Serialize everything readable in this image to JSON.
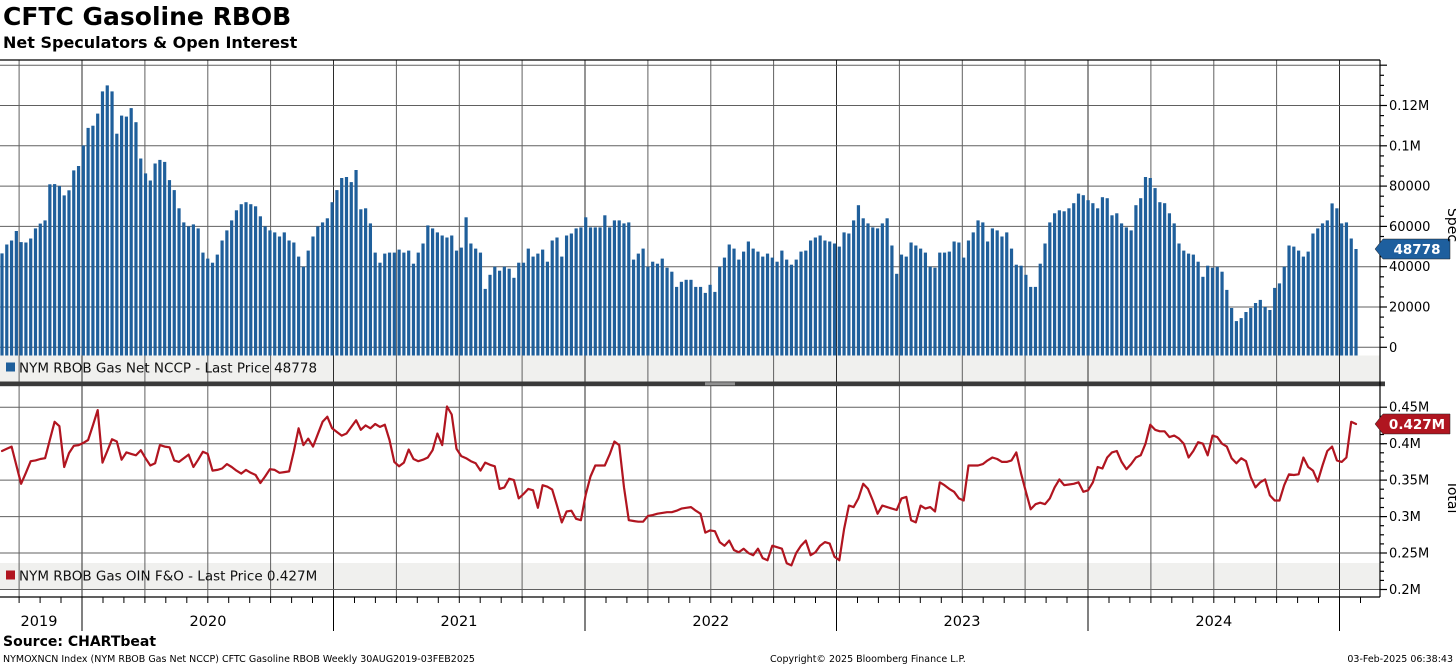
{
  "header": {
    "title": "CFTC Gasoline RBOB",
    "subtitle": "Net Speculators & Open Interest"
  },
  "source_line": "Source: CHARTbeat",
  "footer": {
    "left": "NYMOXNCN Index (NYM RBOB Gas Net NCCP) CFTC Gasoline RBOB  Weekly 30AUG2019-03FEB2025",
    "center": "Copyright© 2025 Bloomberg Finance L.P.",
    "right": "03-Feb-2025 06:38:43"
  },
  "colors": {
    "bar_blue": "#1f5f9b",
    "badge_blue": "#1e5f9e",
    "line_red": "#b11520",
    "badge_red": "#b01520",
    "grid": "#606060",
    "grid_year": "#2b2b2b",
    "legend_band": "#f0f0ee",
    "divider": "#3a3a3a",
    "divider_handle": "#909090",
    "axis_line": "#000000"
  },
  "x_axis": {
    "year_labels": [
      "2019",
      "2020",
      "2021",
      "2022",
      "2023",
      "2024"
    ],
    "frequency": "Weekly",
    "range": "30AUG2019-03FEB2025"
  },
  "chart_data": [
    {
      "panel": "top",
      "type": "bar",
      "series_name": "NYM RBOB Gas Net NCCP",
      "legend_label": "NYM RBOB Gas Net NCCP - Last Price 48778",
      "axis_title": "Spec",
      "last_price": 48778,
      "last_price_label": "48778",
      "unit": "contracts (weekly net speculator position)",
      "ylim": [
        0,
        142000
      ],
      "yticks": [
        {
          "v": 0,
          "label": "0"
        },
        {
          "v": 20000,
          "label": "20000"
        },
        {
          "v": 40000,
          "label": "40000"
        },
        {
          "v": 60000,
          "label": "60000"
        },
        {
          "v": 80000,
          "label": "80000"
        },
        {
          "v": 100000,
          "label": "0.1M"
        },
        {
          "v": 120000,
          "label": "0.12M"
        }
      ],
      "values": [
        46600,
        51000,
        53000,
        57700,
        52200,
        52000,
        54000,
        59000,
        61400,
        63000,
        80900,
        81000,
        80000,
        75400,
        77900,
        87800,
        90000,
        100200,
        108900,
        110000,
        116000,
        127000,
        130000,
        127000,
        106000,
        115000,
        114500,
        118700,
        111700,
        93700,
        86300,
        82800,
        91200,
        93000,
        92000,
        83000,
        78000,
        69000,
        62000,
        60000,
        61000,
        59000,
        47000,
        44000,
        42000,
        46000,
        53000,
        58000,
        63000,
        68000,
        71000,
        72000,
        71000,
        70000,
        65000,
        60000,
        58000,
        57000,
        55000,
        57000,
        53000,
        52000,
        45000,
        40000,
        48000,
        55000,
        60000,
        62000,
        64000,
        72000,
        78000,
        84000,
        84500,
        82000,
        88000,
        68500,
        69000,
        61500,
        47000,
        42000,
        46500,
        47000,
        47000,
        48500,
        47000,
        48000,
        41500,
        47000,
        51500,
        60500,
        59000,
        57000,
        55500,
        54500,
        55500,
        48000,
        49500,
        64500,
        51500,
        49000,
        47000,
        29000,
        36000,
        40000,
        38000,
        40000,
        39000,
        34500,
        42000,
        42000,
        49000,
        45000,
        46500,
        48500,
        42500,
        53000,
        54500,
        45000,
        55500,
        56500,
        59000,
        59500,
        64500,
        59500,
        59500,
        59500,
        65500,
        59500,
        63000,
        63000,
        61500,
        62000,
        43500,
        46500,
        49000,
        40000,
        42500,
        41500,
        44000,
        39500,
        37500,
        30000,
        32500,
        33500,
        33500,
        30000,
        30000,
        27000,
        31000,
        27500,
        40000,
        44500,
        51000,
        49000,
        43500,
        47500,
        52500,
        49000,
        47500,
        45000,
        46500,
        44500,
        42500,
        48000,
        43500,
        41000,
        43500,
        47500,
        48000,
        53000,
        54500,
        55500,
        53000,
        52500,
        51500,
        50000,
        57000,
        56500,
        63000,
        70500,
        64000,
        61500,
        59500,
        59000,
        61500,
        64000,
        50500,
        36500,
        46000,
        45000,
        52000,
        50500,
        49000,
        47000,
        40000,
        39500,
        47000,
        47000,
        47500,
        52500,
        52000,
        44500,
        53000,
        57000,
        63000,
        62000,
        52500,
        59000,
        58000,
        55000,
        57000,
        49000,
        41000,
        40500,
        36000,
        30000,
        30000,
        41500,
        51500,
        62000,
        66500,
        68000,
        67500,
        69000,
        71500,
        76300,
        75500,
        73000,
        71500,
        69000,
        74500,
        74000,
        65500,
        66500,
        61500,
        59500,
        58000,
        70500,
        74000,
        84500,
        84000,
        79000,
        72000,
        71500,
        66500,
        61500,
        51500,
        48000,
        46500,
        46000,
        42500,
        35000,
        40500,
        39500,
        40000,
        37500,
        28500,
        19500,
        13000,
        14500,
        17500,
        19500,
        22000,
        23500,
        20000,
        18500,
        29500,
        31700,
        40000,
        50500,
        50000,
        48000,
        45000,
        47500,
        56500,
        59000,
        61500,
        63000,
        71400,
        69000,
        61500,
        62000,
        54000,
        48778
      ]
    },
    {
      "panel": "bottom",
      "type": "line",
      "series_name": "NYM RBOB Gas OIN F&O",
      "legend_label": "NYM RBOB Gas OIN F&O - Last Price 0.427M",
      "axis_title": "Total",
      "last_price": 0.427,
      "last_price_label": "0.427M",
      "unit": "millions of contracts (open interest, futures & options)",
      "ylim": [
        0.19,
        0.46
      ],
      "yticks": [
        {
          "v": 0.2,
          "label": "0.2M"
        },
        {
          "v": 0.25,
          "label": "0.25M"
        },
        {
          "v": 0.3,
          "label": "0.3M"
        },
        {
          "v": 0.35,
          "label": "0.35M"
        },
        {
          "v": 0.4,
          "label": "0.4M"
        },
        {
          "v": 0.45,
          "label": "0.45M"
        }
      ],
      "values": [
        0.39,
        0.393,
        0.396,
        0.37,
        0.345,
        0.36,
        0.376,
        0.377,
        0.379,
        0.38,
        0.405,
        0.43,
        0.424,
        0.368,
        0.387,
        0.397,
        0.398,
        0.401,
        0.405,
        0.425,
        0.446,
        0.374,
        0.39,
        0.406,
        0.403,
        0.378,
        0.388,
        0.386,
        0.384,
        0.391,
        0.38,
        0.37,
        0.373,
        0.398,
        0.396,
        0.395,
        0.377,
        0.375,
        0.38,
        0.385,
        0.368,
        0.378,
        0.389,
        0.386,
        0.363,
        0.364,
        0.366,
        0.372,
        0.368,
        0.363,
        0.359,
        0.364,
        0.36,
        0.357,
        0.346,
        0.355,
        0.365,
        0.364,
        0.36,
        0.361,
        0.362,
        0.39,
        0.421,
        0.398,
        0.407,
        0.396,
        0.413,
        0.43,
        0.437,
        0.421,
        0.416,
        0.411,
        0.414,
        0.423,
        0.432,
        0.419,
        0.425,
        0.421,
        0.427,
        0.423,
        0.426,
        0.405,
        0.375,
        0.369,
        0.374,
        0.392,
        0.379,
        0.376,
        0.378,
        0.381,
        0.391,
        0.414,
        0.398,
        0.451,
        0.44,
        0.393,
        0.383,
        0.38,
        0.376,
        0.373,
        0.363,
        0.374,
        0.371,
        0.369,
        0.338,
        0.34,
        0.352,
        0.35,
        0.325,
        0.331,
        0.338,
        0.336,
        0.312,
        0.343,
        0.341,
        0.337,
        0.315,
        0.292,
        0.307,
        0.308,
        0.297,
        0.295,
        0.33,
        0.355,
        0.37,
        0.37,
        0.37,
        0.385,
        0.403,
        0.398,
        0.34,
        0.295,
        0.294,
        0.293,
        0.293,
        0.301,
        0.302,
        0.304,
        0.305,
        0.306,
        0.306,
        0.308,
        0.311,
        0.312,
        0.313,
        0.308,
        0.304,
        0.278,
        0.281,
        0.28,
        0.265,
        0.26,
        0.267,
        0.254,
        0.251,
        0.256,
        0.25,
        0.247,
        0.256,
        0.243,
        0.24,
        0.26,
        0.258,
        0.256,
        0.236,
        0.233,
        0.25,
        0.26,
        0.267,
        0.247,
        0.251,
        0.26,
        0.265,
        0.263,
        0.245,
        0.24,
        0.283,
        0.315,
        0.313,
        0.325,
        0.345,
        0.338,
        0.322,
        0.304,
        0.315,
        0.313,
        0.311,
        0.309,
        0.325,
        0.327,
        0.295,
        0.292,
        0.315,
        0.311,
        0.313,
        0.307,
        0.347,
        0.343,
        0.338,
        0.334,
        0.325,
        0.322,
        0.37,
        0.37,
        0.37,
        0.372,
        0.377,
        0.381,
        0.379,
        0.375,
        0.375,
        0.377,
        0.388,
        0.359,
        0.334,
        0.31,
        0.317,
        0.319,
        0.317,
        0.325,
        0.34,
        0.351,
        0.343,
        0.344,
        0.345,
        0.347,
        0.334,
        0.336,
        0.347,
        0.368,
        0.366,
        0.381,
        0.388,
        0.39,
        0.375,
        0.365,
        0.372,
        0.381,
        0.384,
        0.4,
        0.426,
        0.419,
        0.417,
        0.417,
        0.409,
        0.411,
        0.407,
        0.4,
        0.381,
        0.39,
        0.402,
        0.4,
        0.384,
        0.411,
        0.409,
        0.4,
        0.396,
        0.38,
        0.373,
        0.38,
        0.376,
        0.354,
        0.34,
        0.347,
        0.351,
        0.329,
        0.322,
        0.322,
        0.343,
        0.358,
        0.357,
        0.358,
        0.381,
        0.368,
        0.363,
        0.348,
        0.37,
        0.39,
        0.396,
        0.377,
        0.375,
        0.381,
        0.43,
        0.427
      ]
    }
  ]
}
